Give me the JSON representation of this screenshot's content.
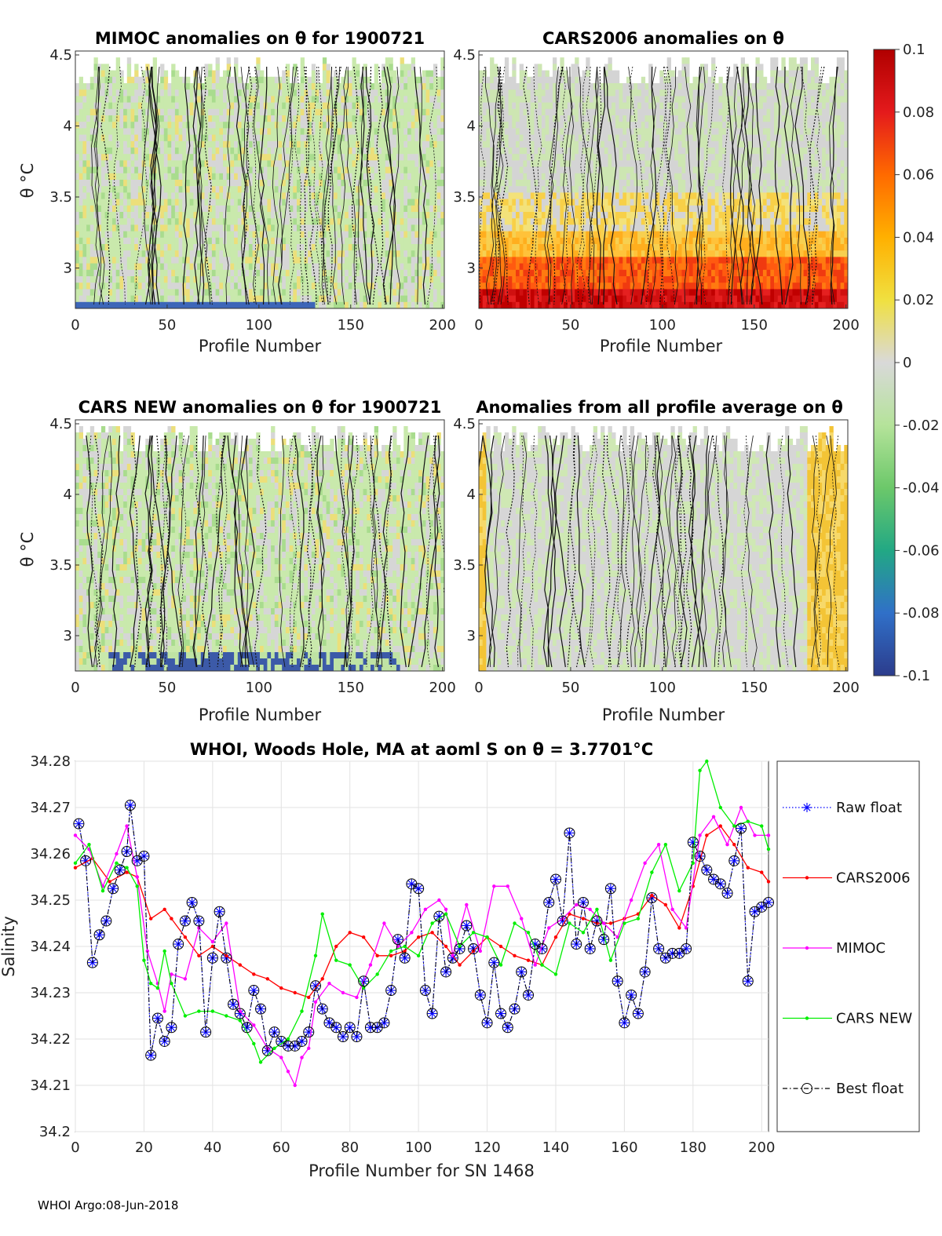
{
  "footer": "WHOI Argo:08-Jun-2018",
  "colorbar": {
    "ticks": [
      "0.1",
      "0.08",
      "0.06",
      "0.04",
      "0.02",
      "0",
      "-0.02",
      "-0.04",
      "-0.06",
      "-0.08",
      "-0.1"
    ],
    "range": [
      -0.1,
      0.1
    ],
    "colormap": "parula-jet hybrid: blue (-0.1) → green → gray (0) → yellow → red (0.1)"
  },
  "panels": [
    {
      "title": "MIMOC anomalies on θ  for 1900721",
      "xlabel": "Profile Number",
      "ylabel": "θ °C",
      "xticks": [
        "0",
        "50",
        "100",
        "150",
        "200"
      ],
      "yticks": [
        "4.5",
        "4",
        "3.5",
        "3"
      ]
    },
    {
      "title": "CARS2006 anomalies on θ",
      "xlabel": "Profile Number",
      "ylabel": "",
      "xticks": [
        "0",
        "50",
        "100",
        "150",
        "200"
      ],
      "yticks": [
        "4.5",
        "4",
        "3.5",
        "3"
      ]
    },
    {
      "title": "CARS NEW anomalies on θ for 1900721",
      "xlabel": "Profile Number",
      "ylabel": "θ °C",
      "xticks": [
        "0",
        "50",
        "100",
        "150",
        "200"
      ],
      "yticks": [
        "4.5",
        "4",
        "3.5",
        "3"
      ]
    },
    {
      "title": "Anomalies from all profile average on θ",
      "xlabel": "Profile Number",
      "ylabel": "",
      "xticks": [
        "0",
        "50",
        "100",
        "150",
        "200"
      ],
      "yticks": [
        "4.5",
        "4",
        "3.5",
        "3"
      ]
    }
  ],
  "chart_data": {
    "type": "line",
    "title": "WHOI, Woods Hole, MA at aoml S on θ = 3.7701°C",
    "xlabel": "Profile Number for SN 1468",
    "ylabel": "Salinity",
    "xlim": [
      0,
      202
    ],
    "ylim": [
      34.2,
      34.28
    ],
    "xticks": [
      "0",
      "20",
      "40",
      "60",
      "80",
      "100",
      "120",
      "140",
      "160",
      "180",
      "200"
    ],
    "yticks": [
      "34.2",
      "34.21",
      "34.22",
      "34.23",
      "34.24",
      "34.25",
      "34.26",
      "34.27",
      "34.28"
    ],
    "grid": true,
    "legend_position": "right, outside",
    "series": [
      {
        "name": "Raw float",
        "color": "#0000ff",
        "style": "dotted",
        "marker": "asterisk",
        "x": [
          1,
          3,
          5,
          7,
          9,
          11,
          13,
          15,
          16,
          18,
          20,
          22,
          24,
          26,
          28,
          30,
          32,
          34,
          36,
          38,
          40,
          42,
          44,
          46,
          48,
          50,
          52,
          54,
          56,
          58,
          60,
          62,
          64,
          66,
          68,
          70,
          72,
          74,
          76,
          78,
          80,
          82,
          84,
          86,
          88,
          90,
          92,
          94,
          96,
          98,
          100,
          102,
          104,
          106,
          108,
          110,
          112,
          114,
          116,
          118,
          120,
          122,
          124,
          126,
          128,
          130,
          132,
          134,
          136,
          138,
          140,
          142,
          144,
          146,
          148,
          150,
          152,
          154,
          156,
          158,
          160,
          162,
          164,
          166,
          168,
          170,
          172,
          174,
          176,
          178,
          180,
          182,
          184,
          186,
          188,
          190,
          192,
          194,
          196,
          198,
          200,
          202
        ],
        "y": [
          34.2665,
          34.2585,
          34.2365,
          34.2425,
          34.2455,
          34.2525,
          34.2565,
          34.2605,
          34.2705,
          34.2585,
          34.2595,
          34.2165,
          34.2245,
          34.2195,
          34.2225,
          34.2405,
          34.2455,
          34.2495,
          34.2455,
          34.2215,
          34.2375,
          34.2475,
          34.2375,
          34.2275,
          34.2255,
          34.2225,
          34.2305,
          34.2265,
          34.2175,
          34.2215,
          34.2195,
          34.2185,
          34.2185,
          34.2195,
          34.2215,
          34.2315,
          34.2265,
          34.2235,
          34.2225,
          34.2205,
          34.2225,
          34.2205,
          34.2325,
          34.2225,
          34.2225,
          34.2235,
          34.2305,
          34.2415,
          34.2375,
          34.2535,
          34.2525,
          34.2305,
          34.2255,
          34.2465,
          34.2345,
          34.2375,
          34.2395,
          34.2445,
          34.2395,
          34.2295,
          34.2235,
          34.2365,
          34.2255,
          34.2225,
          34.2265,
          34.2345,
          34.2295,
          34.2405,
          34.2395,
          34.2495,
          34.2545,
          34.2455,
          34.2645,
          34.2405,
          34.2495,
          34.2395,
          34.2455,
          34.2415,
          34.2525,
          34.2325,
          34.2235,
          34.2295,
          34.2255,
          34.2345,
          34.2505,
          34.2395,
          34.2375,
          34.2385,
          34.2385,
          34.2395,
          34.2625,
          34.2595,
          34.2565,
          34.2545,
          34.2535,
          34.2515,
          34.2585,
          34.2655,
          34.2325,
          34.2475,
          34.2485,
          34.2495
        ]
      },
      {
        "name": "CARS2006",
        "color": "#ff0000",
        "style": "solid",
        "marker": "dot",
        "x": [
          0,
          5,
          10,
          15,
          18,
          22,
          26,
          28,
          32,
          36,
          40,
          44,
          48,
          52,
          56,
          60,
          64,
          68,
          72,
          76,
          80,
          84,
          88,
          92,
          96,
          100,
          104,
          108,
          112,
          116,
          120,
          124,
          128,
          132,
          136,
          140,
          144,
          148,
          152,
          156,
          160,
          164,
          168,
          172,
          176,
          180,
          184,
          188,
          192,
          196,
          200,
          202
        ],
        "y": [
          34.257,
          34.259,
          34.254,
          34.256,
          34.255,
          34.246,
          34.248,
          34.246,
          34.242,
          34.238,
          34.24,
          34.238,
          34.236,
          34.234,
          34.233,
          34.231,
          34.23,
          34.229,
          34.233,
          34.24,
          34.243,
          34.242,
          34.238,
          34.238,
          34.239,
          34.242,
          34.243,
          34.24,
          34.236,
          34.239,
          34.242,
          34.24,
          34.238,
          34.237,
          34.236,
          34.242,
          34.247,
          34.246,
          34.245,
          34.245,
          34.246,
          34.247,
          34.251,
          34.249,
          34.244,
          34.253,
          34.264,
          34.266,
          34.262,
          34.257,
          34.256,
          34.254
        ]
      },
      {
        "name": "MIMOC",
        "color": "#ff00ff",
        "style": "solid",
        "marker": "dot",
        "x": [
          0,
          4,
          8,
          12,
          15,
          18,
          21,
          24,
          26,
          28,
          32,
          36,
          40,
          44,
          48,
          52,
          56,
          60,
          62,
          64,
          66,
          68,
          70,
          74,
          78,
          82,
          86,
          90,
          94,
          98,
          102,
          106,
          108,
          110,
          114,
          118,
          122,
          126,
          130,
          134,
          138,
          142,
          146,
          150,
          154,
          158,
          162,
          166,
          170,
          174,
          178,
          182,
          186,
          190,
          194,
          198,
          202
        ],
        "y": [
          34.264,
          34.261,
          34.253,
          34.26,
          34.266,
          34.255,
          34.239,
          34.232,
          34.226,
          34.234,
          34.233,
          34.244,
          34.241,
          34.245,
          34.226,
          34.223,
          34.218,
          34.216,
          34.213,
          34.21,
          34.216,
          34.218,
          34.228,
          34.232,
          34.23,
          34.229,
          34.236,
          34.245,
          34.24,
          34.243,
          34.248,
          34.25,
          34.248,
          34.238,
          34.249,
          34.239,
          34.253,
          34.253,
          34.246,
          34.236,
          34.244,
          34.246,
          34.249,
          34.248,
          34.245,
          34.242,
          34.25,
          34.258,
          34.262,
          34.248,
          34.244,
          34.264,
          34.268,
          34.262,
          34.27,
          34.264,
          34.264
        ]
      },
      {
        "name": "CARS NEW",
        "color": "#00ee00",
        "style": "solid",
        "marker": "dot",
        "x": [
          0,
          4,
          8,
          12,
          15,
          18,
          20,
          22,
          24,
          26,
          28,
          32,
          36,
          40,
          44,
          48,
          52,
          54,
          58,
          62,
          66,
          70,
          72,
          76,
          80,
          84,
          88,
          92,
          96,
          100,
          104,
          108,
          112,
          116,
          120,
          124,
          128,
          132,
          136,
          140,
          144,
          148,
          152,
          156,
          160,
          164,
          168,
          172,
          176,
          180,
          182,
          184,
          188,
          192,
          196,
          200,
          202
        ],
        "y": [
          34.258,
          34.262,
          34.252,
          34.258,
          34.257,
          34.253,
          34.237,
          34.232,
          34.231,
          34.239,
          34.232,
          34.225,
          34.226,
          34.226,
          34.225,
          34.224,
          34.219,
          34.215,
          34.218,
          34.22,
          34.226,
          34.238,
          34.247,
          34.237,
          34.236,
          34.231,
          34.234,
          34.239,
          34.24,
          34.238,
          34.245,
          34.247,
          34.24,
          34.243,
          34.242,
          34.236,
          34.245,
          34.243,
          34.236,
          34.234,
          34.245,
          34.243,
          34.248,
          34.237,
          34.245,
          34.246,
          34.256,
          34.262,
          34.252,
          34.258,
          34.278,
          34.28,
          34.27,
          34.266,
          34.267,
          34.266,
          34.261
        ]
      },
      {
        "name": "Best float",
        "color": "#000000",
        "style": "dashdot",
        "marker": "circle",
        "x": [
          1,
          3,
          5,
          7,
          9,
          11,
          13,
          15,
          16,
          18,
          20,
          22,
          24,
          26,
          28,
          30,
          32,
          34,
          36,
          38,
          40,
          42,
          44,
          46,
          48,
          50,
          52,
          54,
          56,
          58,
          60,
          62,
          64,
          66,
          68,
          70,
          72,
          74,
          76,
          78,
          80,
          82,
          84,
          86,
          88,
          90,
          92,
          94,
          96,
          98,
          100,
          102,
          104,
          106,
          108,
          110,
          112,
          114,
          116,
          118,
          120,
          122,
          124,
          126,
          128,
          130,
          132,
          134,
          136,
          138,
          140,
          142,
          144,
          146,
          148,
          150,
          152,
          154,
          156,
          158,
          160,
          162,
          164,
          166,
          168,
          170,
          172,
          174,
          176,
          178,
          180,
          182,
          184,
          186,
          188,
          190,
          192,
          194,
          196,
          198,
          200,
          202
        ],
        "y": [
          34.2665,
          34.2585,
          34.2365,
          34.2425,
          34.2455,
          34.2525,
          34.2565,
          34.2605,
          34.2705,
          34.2585,
          34.2595,
          34.2165,
          34.2245,
          34.2195,
          34.2225,
          34.2405,
          34.2455,
          34.2495,
          34.2455,
          34.2215,
          34.2375,
          34.2475,
          34.2375,
          34.2275,
          34.2255,
          34.2225,
          34.2305,
          34.2265,
          34.2175,
          34.2215,
          34.2195,
          34.2185,
          34.2185,
          34.2195,
          34.2215,
          34.2315,
          34.2265,
          34.2235,
          34.2225,
          34.2205,
          34.2225,
          34.2205,
          34.2325,
          34.2225,
          34.2225,
          34.2235,
          34.2305,
          34.2415,
          34.2375,
          34.2535,
          34.2525,
          34.2305,
          34.2255,
          34.2465,
          34.2345,
          34.2375,
          34.2395,
          34.2445,
          34.2395,
          34.2295,
          34.2235,
          34.2365,
          34.2255,
          34.2225,
          34.2265,
          34.2345,
          34.2295,
          34.2405,
          34.2395,
          34.2495,
          34.2545,
          34.2455,
          34.2645,
          34.2405,
          34.2495,
          34.2395,
          34.2455,
          34.2415,
          34.2525,
          34.2325,
          34.2235,
          34.2295,
          34.2255,
          34.2345,
          34.2505,
          34.2395,
          34.2375,
          34.2385,
          34.2385,
          34.2395,
          34.2625,
          34.2595,
          34.2565,
          34.2545,
          34.2535,
          34.2515,
          34.2585,
          34.2655,
          34.2325,
          34.2475,
          34.2485,
          34.2495
        ]
      }
    ]
  }
}
